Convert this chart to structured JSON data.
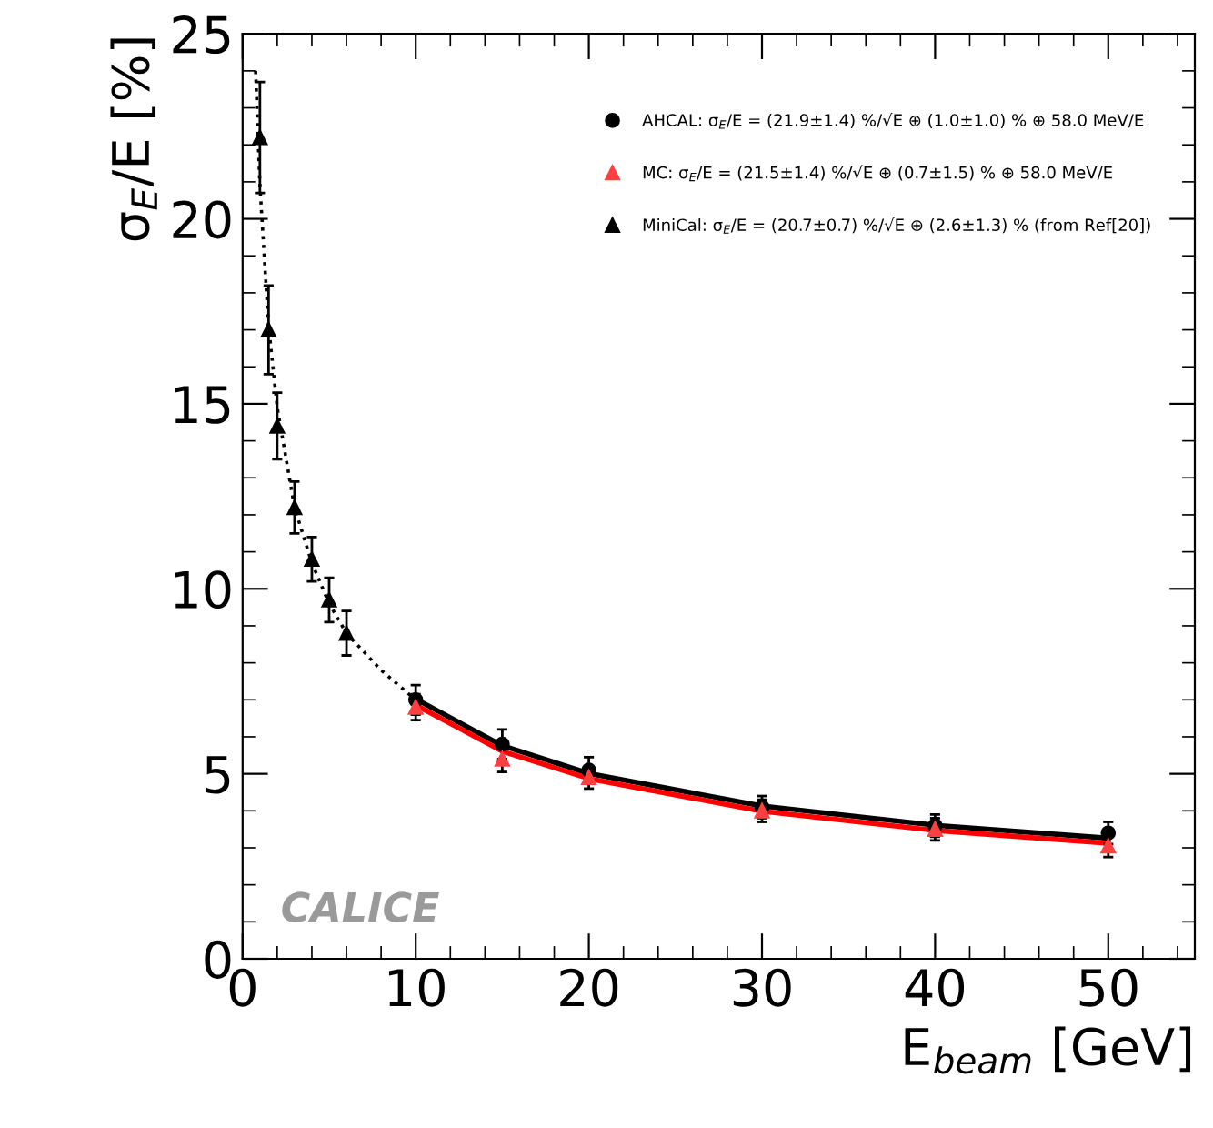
{
  "chart_data": {
    "type": "scatter",
    "xlabel": "E$_{beam}$ [GeV]",
    "ylabel": "σ$_{E}$/E [%]",
    "xlim": [
      0,
      55
    ],
    "ylim": [
      0,
      25
    ],
    "xticks": [
      0,
      10,
      20,
      30,
      40,
      50
    ],
    "yticks": [
      0,
      5,
      10,
      15,
      20,
      25
    ],
    "grid": false,
    "legend": "top right",
    "annotations": [
      "CALICE"
    ],
    "series": [
      {
        "name": "AHCAL: σ$_{E}$/E = (21.9±1.4) %/√E ⊕ (1.0±1.0) % ⊕ 58.0 MeV/E",
        "marker": "circle",
        "color": "#000000",
        "x": [
          10,
          15,
          20,
          30,
          40,
          50
        ],
        "values": [
          7.0,
          5.8,
          5.1,
          4.1,
          3.6,
          3.4
        ],
        "errors": [
          0.4,
          0.4,
          0.35,
          0.3,
          0.3,
          0.3
        ]
      },
      {
        "name": "MC: σ$_{E}$/E = (21.5±1.4) %/√E ⊕ (0.7±1.5) % ⊕ 58.0 MeV/E",
        "marker": "triangle",
        "color": "#ff4040",
        "x": [
          10,
          15,
          20,
          30,
          40,
          50
        ],
        "values": [
          6.8,
          5.4,
          4.9,
          4.0,
          3.5,
          3.05
        ],
        "errors": [
          0.35,
          0.35,
          0.3,
          0.3,
          0.3,
          0.3
        ]
      },
      {
        "name": "MiniCal: σ$_{E}$/E = (20.7±0.7) %/√E ⊕ (2.6±1.3) % (from Ref[20])",
        "marker": "triangle",
        "color": "#000000",
        "x": [
          1,
          1.5,
          2,
          3,
          4,
          5,
          6
        ],
        "values": [
          22.2,
          17.0,
          14.4,
          12.2,
          10.8,
          9.7,
          8.8
        ],
        "errors": [
          1.5,
          1.2,
          0.9,
          0.7,
          0.6,
          0.6,
          0.6
        ]
      },
      {
        "type": "line",
        "line_style": "solid",
        "color": "#000000",
        "x": [
          10,
          15,
          20,
          30,
          40,
          50
        ],
        "values": [
          7.02,
          5.76,
          5.01,
          4.13,
          3.61,
          3.26
        ]
      },
      {
        "type": "line",
        "line_style": "solid",
        "color": "#ff0000",
        "x": [
          10,
          15,
          20,
          30,
          40,
          50
        ],
        "values": [
          6.86,
          5.61,
          4.87,
          3.99,
          3.47,
          3.12
        ]
      },
      {
        "type": "line",
        "line_style": "dotted",
        "color": "#000000",
        "x": [
          0.75,
          1,
          1.5,
          2,
          3,
          4,
          5,
          6,
          8,
          10
        ],
        "values": [
          24.0,
          20.9,
          17.1,
          14.9,
          12.2,
          10.7,
          9.6,
          8.8,
          7.8,
          7.0
        ]
      }
    ]
  }
}
